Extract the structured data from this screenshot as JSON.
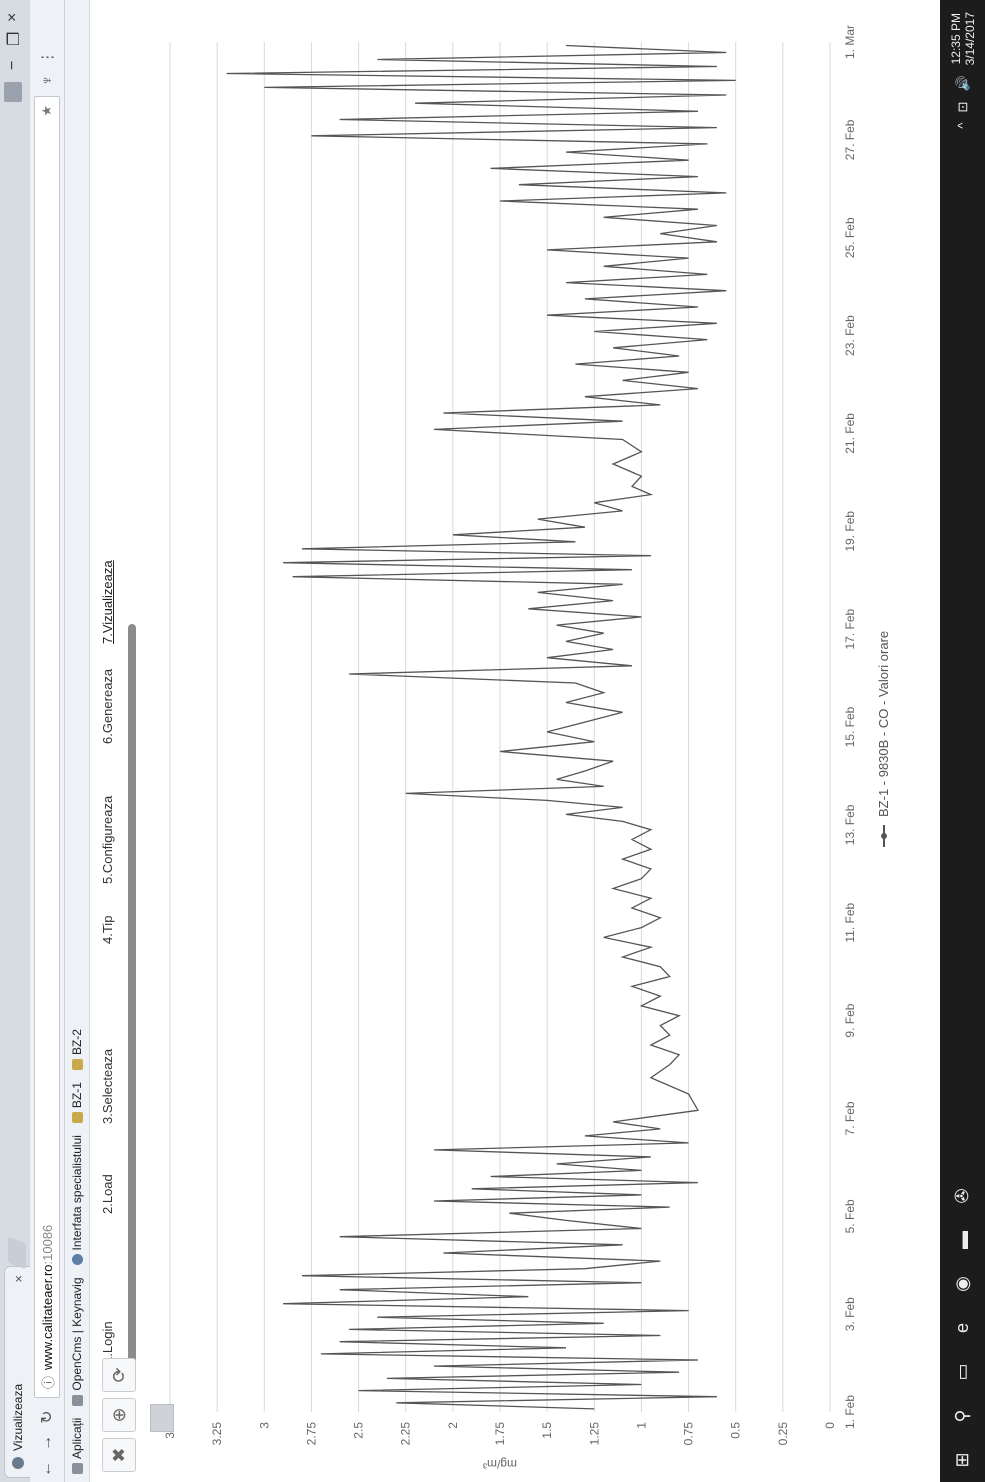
{
  "browser": {
    "tab_title": "Vizualizeaza",
    "tab_close": "×",
    "url_host": "www.calitateaer.ro",
    "url_path": ":10086",
    "minimize": "−",
    "restore": "❐",
    "close": "×"
  },
  "bookmarks": [
    {
      "label": "Aplicații",
      "icon": "apps-icon"
    },
    {
      "label": "OpenCms | Keynavig",
      "icon": "page-icon"
    },
    {
      "label": "Interfata specialistului",
      "icon": "globe-icon"
    },
    {
      "label": "BZ-1",
      "icon": "folder-icon"
    },
    {
      "label": "BZ-2",
      "icon": "folder-icon"
    }
  ],
  "steps": [
    "1.Login",
    "2.Load",
    "3.Selecteaza",
    "4.Tip",
    "5.Configureaza",
    "6.Genereaza",
    "7.Vizualizeaza"
  ],
  "active_step": "7.Vizualizeaza",
  "taskbar": {
    "time": "12:35 PM",
    "date": "3/14/2017"
  },
  "chart_data": {
    "type": "line",
    "title": "",
    "xlabel": "",
    "ylabel": "mg/m³",
    "ylim": [
      0,
      3.5
    ],
    "yticks": [
      "0",
      "0.25",
      "0.5",
      "0.75",
      "1",
      "1.25",
      "1.5",
      "1.75",
      "2",
      "2.25",
      "2.5",
      "2.75",
      "3",
      "3.25",
      "3.5"
    ],
    "xticks": [
      "1. Feb",
      "3. Feb",
      "5. Feb",
      "7. Feb",
      "9. Feb",
      "11. Feb",
      "13. Feb",
      "15. Feb",
      "17. Feb",
      "19. Feb",
      "21. Feb",
      "23. Feb",
      "25. Feb",
      "27. Feb",
      "1. Mar"
    ],
    "grid": true,
    "legend_position": "bottom",
    "series": [
      {
        "name": "BZ-1 - 9830B - CO - Valori orare",
        "color": "#555555",
        "points": [
          [
            "1. Feb",
            1.25
          ],
          [
            "1. Feb",
            2.3
          ],
          [
            "1. Feb",
            0.6
          ],
          [
            "1. Feb",
            2.5
          ],
          [
            "1. Feb",
            1.0
          ],
          [
            "1. Feb",
            2.35
          ],
          [
            "1. Feb",
            0.8
          ],
          [
            "1. Feb",
            2.1
          ],
          [
            "2. Feb",
            0.7
          ],
          [
            "2. Feb",
            2.7
          ],
          [
            "2. Feb",
            1.4
          ],
          [
            "2. Feb",
            2.6
          ],
          [
            "2. Feb",
            0.9
          ],
          [
            "2. Feb",
            2.55
          ],
          [
            "2. Feb",
            1.2
          ],
          [
            "2. Feb",
            2.4
          ],
          [
            "3. Feb",
            0.75
          ],
          [
            "3. Feb",
            2.9
          ],
          [
            "3. Feb",
            1.6
          ],
          [
            "3. Feb",
            2.6
          ],
          [
            "3. Feb",
            1.0
          ],
          [
            "3. Feb",
            2.8
          ],
          [
            "3. Feb",
            1.3
          ],
          [
            "4. Feb",
            0.9
          ],
          [
            "4. Feb",
            2.05
          ],
          [
            "4. Feb",
            1.1
          ],
          [
            "4. Feb",
            2.6
          ],
          [
            "4. Feb",
            1.0
          ],
          [
            "4. Feb",
            1.4
          ],
          [
            "5. Feb",
            1.7
          ],
          [
            "5. Feb",
            0.85
          ],
          [
            "5. Feb",
            2.1
          ],
          [
            "5. Feb",
            1.0
          ],
          [
            "5. Feb",
            1.9
          ],
          [
            "5. Feb",
            0.7
          ],
          [
            "5. Feb",
            1.8
          ],
          [
            "5. Feb",
            1.0
          ],
          [
            "6. Feb",
            1.45
          ],
          [
            "6. Feb",
            0.95
          ],
          [
            "6. Feb",
            2.1
          ],
          [
            "6. Feb",
            0.75
          ],
          [
            "6. Feb",
            1.3
          ],
          [
            "6. Feb",
            0.9
          ],
          [
            "6. Feb",
            1.15
          ],
          [
            "7. Feb",
            0.7
          ],
          [
            "7. Feb",
            0.75
          ],
          [
            "7. Feb",
            0.95
          ],
          [
            "8. Feb",
            0.85
          ],
          [
            "8. Feb",
            0.8
          ],
          [
            "8. Feb",
            0.95
          ],
          [
            "8. Feb",
            0.85
          ],
          [
            "8. Feb",
            0.9
          ],
          [
            "9. Feb",
            0.8
          ],
          [
            "9. Feb",
            1.0
          ],
          [
            "9. Feb",
            0.9
          ],
          [
            "9. Feb",
            1.05
          ],
          [
            "9. Feb",
            0.85
          ],
          [
            "10. Feb",
            0.9
          ],
          [
            "10. Feb",
            1.1
          ],
          [
            "10. Feb",
            0.95
          ],
          [
            "10. Feb",
            1.2
          ],
          [
            "10. Feb",
            1.0
          ],
          [
            "11. Feb",
            0.9
          ],
          [
            "11. Feb",
            1.05
          ],
          [
            "11. Feb",
            0.95
          ],
          [
            "11. Feb",
            1.15
          ],
          [
            "11. Feb",
            1.0
          ],
          [
            "12. Feb",
            0.95
          ],
          [
            "12. Feb",
            1.1
          ],
          [
            "12. Feb",
            0.95
          ],
          [
            "12. Feb",
            1.05
          ],
          [
            "12. Feb",
            0.95
          ],
          [
            "13. Feb",
            1.1
          ],
          [
            "13. Feb",
            1.4
          ],
          [
            "13. Feb",
            1.1
          ],
          [
            "13. Feb",
            1.5
          ],
          [
            "13. Feb",
            2.25
          ],
          [
            "13. Feb",
            1.2
          ],
          [
            "13. Feb",
            1.45
          ],
          [
            "14. Feb",
            1.3
          ],
          [
            "14. Feb",
            1.15
          ],
          [
            "14. Feb",
            1.75
          ],
          [
            "14. Feb",
            1.25
          ],
          [
            "14. Feb",
            1.5
          ],
          [
            "15. Feb",
            1.3
          ],
          [
            "15. Feb",
            1.1
          ],
          [
            "15. Feb",
            1.4
          ],
          [
            "15. Feb",
            1.2
          ],
          [
            "15. Feb",
            1.35
          ],
          [
            "16. Feb",
            2.55
          ],
          [
            "16. Feb",
            1.05
          ],
          [
            "16. Feb",
            1.5
          ],
          [
            "16. Feb",
            1.15
          ],
          [
            "16. Feb",
            1.4
          ],
          [
            "16. Feb",
            1.2
          ],
          [
            "17. Feb",
            1.45
          ],
          [
            "17. Feb",
            1.0
          ],
          [
            "17. Feb",
            1.6
          ],
          [
            "17. Feb",
            1.15
          ],
          [
            "17. Feb",
            1.55
          ],
          [
            "17. Feb",
            1.1
          ],
          [
            "18. Feb",
            2.85
          ],
          [
            "18. Feb",
            1.05
          ],
          [
            "18. Feb",
            2.9
          ],
          [
            "18. Feb",
            0.95
          ],
          [
            "18. Feb",
            2.8
          ],
          [
            "18. Feb",
            1.35
          ],
          [
            "18. Feb",
            2.0
          ],
          [
            "19. Feb",
            1.3
          ],
          [
            "19. Feb",
            1.55
          ],
          [
            "19. Feb",
            1.1
          ],
          [
            "19. Feb",
            1.25
          ],
          [
            "19. Feb",
            0.95
          ],
          [
            "19. Feb",
            1.05
          ],
          [
            "20. Feb",
            1.0
          ],
          [
            "20. Feb",
            1.15
          ],
          [
            "20. Feb",
            1.0
          ],
          [
            "20. Feb",
            1.1
          ],
          [
            "21. Feb",
            2.1
          ],
          [
            "21. Feb",
            1.1
          ],
          [
            "21. Feb",
            2.05
          ],
          [
            "21. Feb",
            0.9
          ],
          [
            "21. Feb",
            1.3
          ],
          [
            "21. Feb",
            0.7
          ],
          [
            "22. Feb",
            1.1
          ],
          [
            "22. Feb",
            0.75
          ],
          [
            "22. Feb",
            1.35
          ],
          [
            "22. Feb",
            0.8
          ],
          [
            "22. Feb",
            1.15
          ],
          [
            "22. Feb",
            0.65
          ],
          [
            "23. Feb",
            1.25
          ],
          [
            "23. Feb",
            0.6
          ],
          [
            "23. Feb",
            1.5
          ],
          [
            "23. Feb",
            0.7
          ],
          [
            "23. Feb",
            1.3
          ],
          [
            "23. Feb",
            0.55
          ],
          [
            "24. Feb",
            1.4
          ],
          [
            "24. Feb",
            0.65
          ],
          [
            "24. Feb",
            1.2
          ],
          [
            "24. Feb",
            0.75
          ],
          [
            "24. Feb",
            1.5
          ],
          [
            "24. Feb",
            0.6
          ],
          [
            "25. Feb",
            0.9
          ],
          [
            "25. Feb",
            0.6
          ],
          [
            "25. Feb",
            1.2
          ],
          [
            "25. Feb",
            0.7
          ],
          [
            "25. Feb",
            1.75
          ],
          [
            "25. Feb",
            0.55
          ],
          [
            "26. Feb",
            1.65
          ],
          [
            "26. Feb",
            0.7
          ],
          [
            "26. Feb",
            1.8
          ],
          [
            "26. Feb",
            0.75
          ],
          [
            "26. Feb",
            1.4
          ],
          [
            "26. Feb",
            0.65
          ],
          [
            "27. Feb",
            2.75
          ],
          [
            "27. Feb",
            0.6
          ],
          [
            "27. Feb",
            2.6
          ],
          [
            "27. Feb",
            0.7
          ],
          [
            "27. Feb",
            2.2
          ],
          [
            "27. Feb",
            0.55
          ],
          [
            "28. Feb",
            3.0
          ],
          [
            "28. Feb",
            0.5
          ],
          [
            "28. Feb",
            3.2
          ],
          [
            "28. Feb",
            0.6
          ],
          [
            "28. Feb",
            2.4
          ],
          [
            "28. Feb",
            0.55
          ],
          [
            "28. Feb",
            1.4
          ]
        ]
      }
    ]
  }
}
